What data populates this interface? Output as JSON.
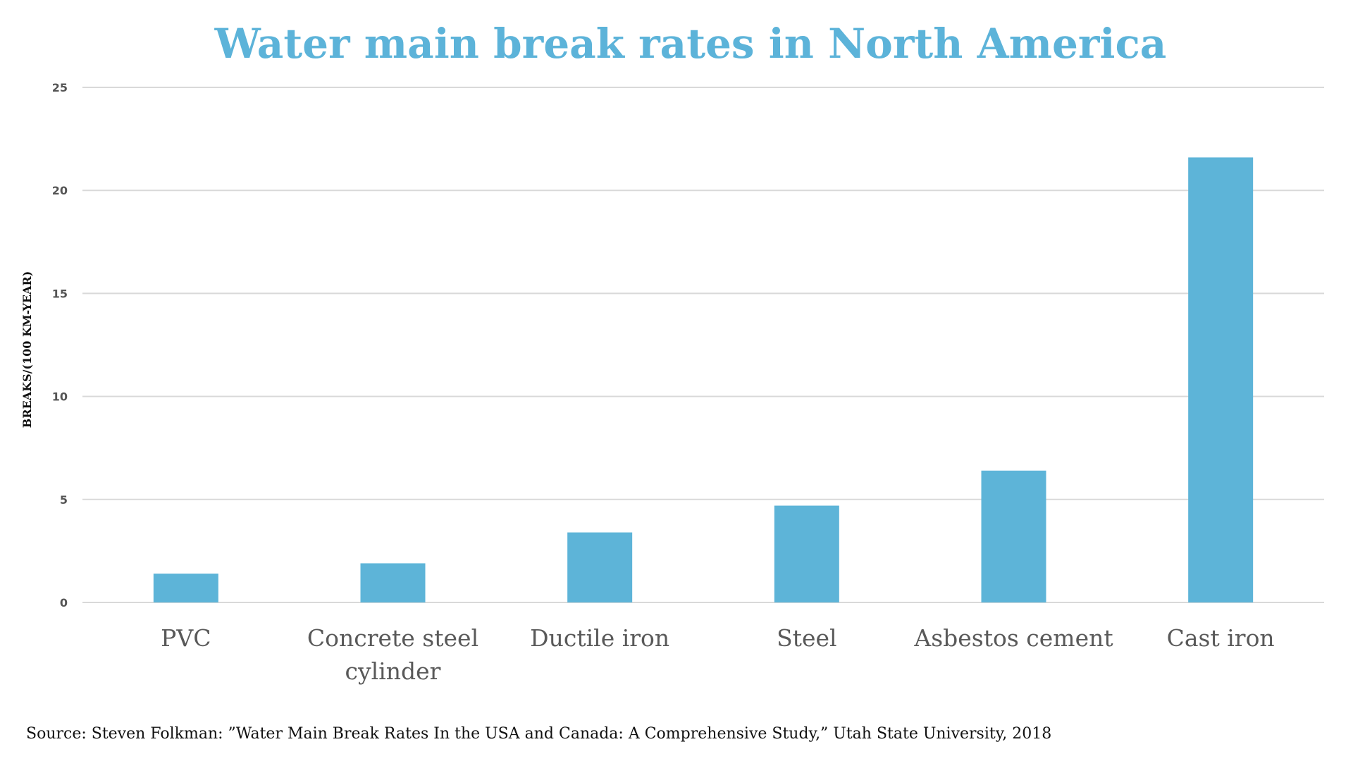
{
  "chart_data": {
    "type": "bar",
    "title": "Water main break rates in North America",
    "xlabel": "",
    "ylabel": "BREAKS/(100 KM-YEAR)",
    "categories": [
      [
        "PVC"
      ],
      [
        "Concrete steel",
        "cylinder"
      ],
      [
        "Ductile iron"
      ],
      [
        "Steel"
      ],
      [
        "Asbestos cement"
      ],
      [
        "Cast iron"
      ]
    ],
    "values": [
      1.4,
      1.9,
      3.4,
      4.7,
      6.4,
      21.6
    ],
    "ylim": [
      0,
      25
    ],
    "yticks": [
      0,
      5,
      10,
      15,
      20,
      25
    ],
    "grid": true,
    "legend": "none",
    "source": "Source: Steven Folkman: ”Water Main Break Rates In the USA and Canada: A Comprehensive Study,” Utah State University, 2018",
    "colors": {
      "bar": "#5db4d8",
      "title": "#5cb3d9",
      "grid": "#d9d9d9"
    }
  }
}
